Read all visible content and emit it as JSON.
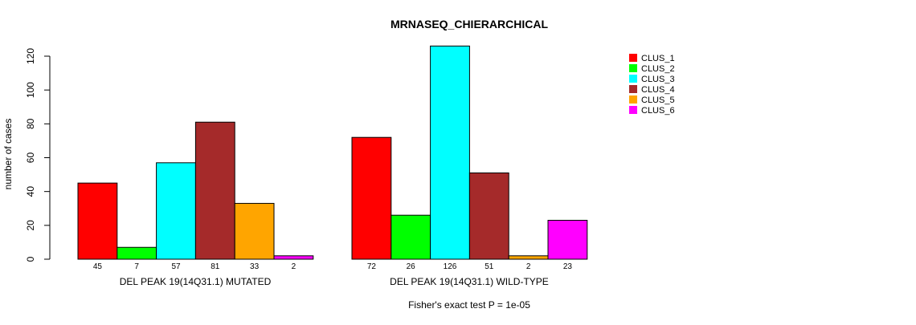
{
  "chart_data": {
    "type": "bar",
    "title": "MRNASEQ_CHIERARCHICAL",
    "xlabel": "",
    "ylabel": "number of cases",
    "ylim": [
      0,
      120
    ],
    "yticks": [
      0,
      20,
      40,
      60,
      80,
      100,
      120
    ],
    "grid": false,
    "legend_position": "top-right",
    "groups": [
      "DEL PEAK 19(14Q31.1) MUTATED",
      "DEL PEAK 19(14Q31.1) WILD-TYPE"
    ],
    "series": [
      {
        "name": "CLUS_1",
        "color": "#FF0000",
        "values": [
          45,
          72
        ]
      },
      {
        "name": "CLUS_2",
        "color": "#00FF00",
        "values": [
          7,
          26
        ]
      },
      {
        "name": "CLUS_3",
        "color": "#00FFFF",
        "values": [
          57,
          126
        ]
      },
      {
        "name": "CLUS_4",
        "color": "#A52A2A",
        "values": [
          81,
          51
        ]
      },
      {
        "name": "CLUS_5",
        "color": "#FFA500",
        "values": [
          33,
          2
        ]
      },
      {
        "name": "CLUS_6",
        "color": "#FF00FF",
        "values": [
          2,
          23
        ]
      }
    ],
    "footnote": "Fisher's exact test P = 1e-05"
  }
}
